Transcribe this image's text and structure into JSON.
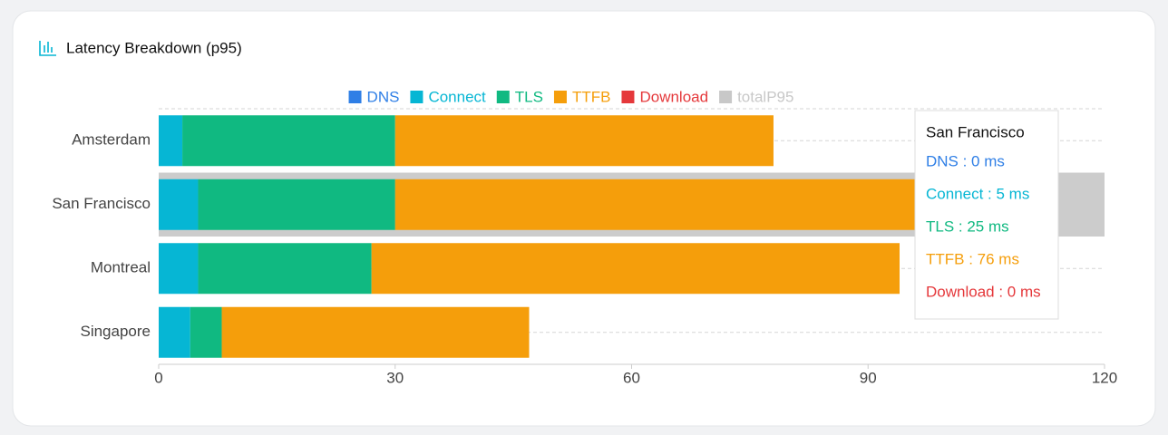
{
  "chart_data": {
    "type": "bar",
    "orientation": "horizontal",
    "stacked": true,
    "title": "Latency Breakdown (p95)",
    "categories": [
      "Amsterdam",
      "San Francisco",
      "Montreal",
      "Singapore"
    ],
    "series": [
      {
        "name": "DNS",
        "color": "#2f7fe6",
        "values": [
          0,
          0,
          0,
          0
        ]
      },
      {
        "name": "Connect",
        "color": "#06b6d4",
        "values": [
          3,
          5,
          5,
          4
        ]
      },
      {
        "name": "TLS",
        "color": "#10b981",
        "values": [
          27,
          25,
          22,
          4
        ]
      },
      {
        "name": "TTFB",
        "color": "#f59e0b",
        "values": [
          48,
          76,
          67,
          39
        ]
      },
      {
        "name": "Download",
        "color": "#e5383b",
        "values": [
          0,
          0,
          0,
          0
        ]
      },
      {
        "name": "totalP95",
        "color": "#c8c8c8",
        "hidden": true
      }
    ],
    "xlim": [
      0,
      120
    ],
    "xticks": [
      0,
      30,
      60,
      90,
      120
    ],
    "grid": true,
    "legend": "top",
    "tooltip": {
      "category": 1,
      "title": "San Francisco",
      "items": [
        "DNS : 0 ms",
        "Connect : 5 ms",
        "TLS : 25 ms",
        "TTFB : 76 ms",
        "Download : 0 ms"
      ]
    }
  }
}
